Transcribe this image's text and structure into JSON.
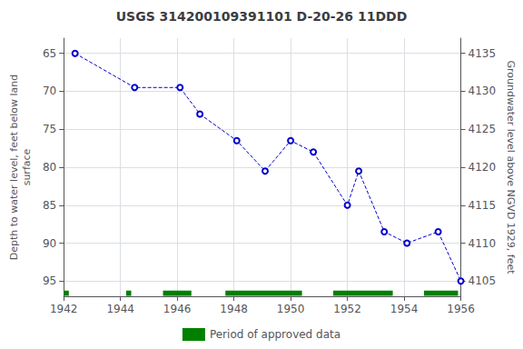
{
  "chart_data": {
    "type": "line",
    "title": "USGS 314200109391101 D-20-26 11DDD",
    "x": [
      1942.4,
      1944.5,
      1946.1,
      1946.8,
      1948.1,
      1949.1,
      1950.0,
      1950.8,
      1952.0,
      1952.4,
      1953.3,
      1954.1,
      1955.2,
      1956.0
    ],
    "values": [
      65.0,
      69.5,
      69.5,
      73.0,
      76.5,
      80.5,
      76.5,
      78.0,
      85.0,
      80.5,
      88.5,
      90.0,
      88.5,
      95.0
    ],
    "color": "#0000CC",
    "marker": "circle",
    "line_style": "dashed",
    "xlim": [
      1942,
      1956
    ],
    "xticks": [
      1942,
      1944,
      1946,
      1948,
      1950,
      1952,
      1954,
      1956
    ],
    "ylim": [
      97,
      63
    ],
    "yticks": [
      65,
      70,
      75,
      80,
      85,
      90,
      95
    ],
    "y2lim": [
      4103,
      4137
    ],
    "y2ticks": [
      4135,
      4130,
      4125,
      4120,
      4115,
      4110,
      4105
    ],
    "ylabel": "Depth to water level, feet below land\nsurface",
    "y2label": "Groundwater level above NGVD 1929, feet",
    "grid": true,
    "legend": "bottom",
    "approved_periods": {
      "name": "Period of approved data",
      "color": "#008000",
      "x": [
        1942.0,
        1944.2,
        1945.5,
        1947.7,
        1951.5,
        1954.7
      ],
      "width": [
        0.18,
        0.18,
        1.0,
        2.7,
        2.1,
        1.2
      ]
    }
  }
}
